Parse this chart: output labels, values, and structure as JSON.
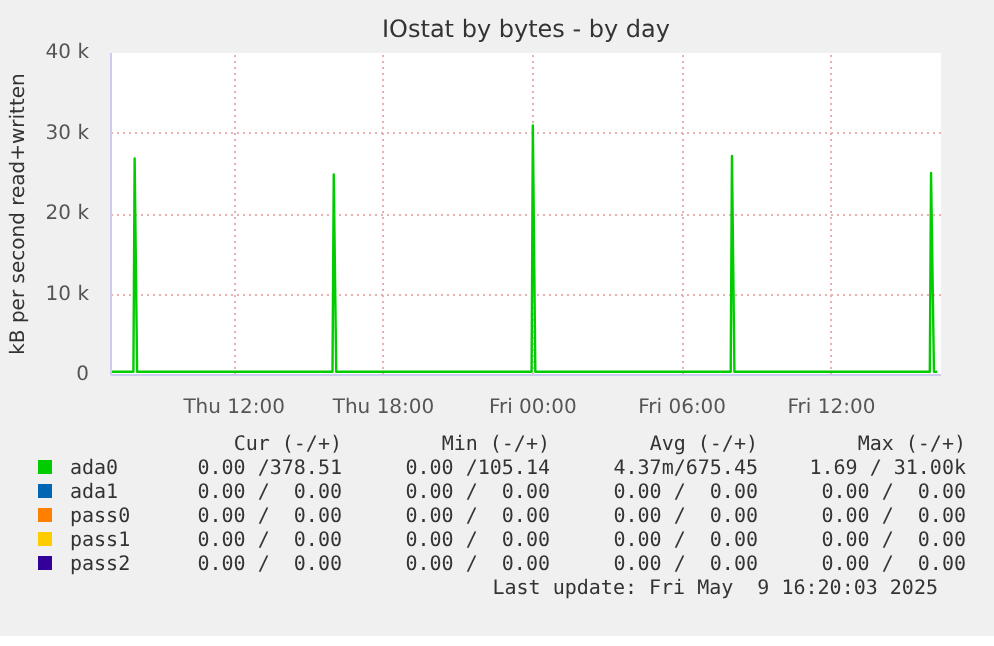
{
  "chart_data": {
    "type": "line",
    "title": "IOstat by bytes - by day",
    "ylabel": "kB per second read+written",
    "xlim": [
      "2025-05-08T07:03",
      "2025-05-09T16:24"
    ],
    "ylim": [
      0,
      40000
    ],
    "xticks": [
      {
        "value": "2025-05-08T12:00",
        "label": "Thu 12:00"
      },
      {
        "value": "2025-05-08T18:00",
        "label": "Thu 18:00"
      },
      {
        "value": "2025-05-09T00:00",
        "label": "Fri 00:00"
      },
      {
        "value": "2025-05-09T06:00",
        "label": "Fri 06:00"
      },
      {
        "value": "2025-05-09T12:00",
        "label": "Fri 12:00"
      }
    ],
    "yticks": [
      0,
      {
        "value": 10000,
        "label": "10 k"
      },
      {
        "value": 20000,
        "label": "20 k"
      },
      {
        "value": 30000,
        "label": "30 k"
      },
      {
        "value": 40000,
        "label": "40 k"
      }
    ],
    "grid": true,
    "legend": "bottom",
    "series": [
      {
        "name": "ada0",
        "color": "#00cc00",
        "x": [
          "2025-05-08T07:04",
          "2025-05-08T07:57",
          "2025-05-08T08:00",
          "2025-05-08T08:06",
          "2025-05-08T15:57",
          "2025-05-08T16:00",
          "2025-05-08T16:06",
          "2025-05-08T23:57",
          "2025-05-09T00:00",
          "2025-05-09T00:06",
          "2025-05-09T07:57",
          "2025-05-09T08:00",
          "2025-05-09T08:06",
          "2025-05-09T15:57",
          "2025-05-09T16:00",
          "2025-05-09T16:07",
          "2025-05-09T16:15"
        ],
        "values": [
          400,
          400,
          26900,
          400,
          400,
          24900,
          400,
          400,
          31000,
          400,
          400,
          27200,
          400,
          400,
          25100,
          400,
          400
        ]
      },
      {
        "name": "ada1",
        "color": "#0066b3"
      },
      {
        "name": "pass0",
        "color": "#ff8000"
      },
      {
        "name": "pass1",
        "color": "#ffcc00"
      },
      {
        "name": "pass2",
        "color": "#330099"
      }
    ],
    "annotations": [
      "Cur (-/+)",
      "Min (-/+)",
      "Avg (-/+)",
      "Max (-/+)",
      "0.00 /378.51",
      "0.00 /105.14",
      "4.37m/675.45",
      "1.69 / 31.00k",
      "0.00 /  0.00",
      "0.00 /  0.00",
      "0.00 /  0.00",
      "0.00 /  0.00",
      "0.00 /  0.00",
      "0.00 /  0.00",
      "0.00 /  0.00",
      "0.00 /  0.00",
      "0.00 /  0.00",
      "0.00 /  0.00",
      "0.00 /  0.00",
      "0.00 /  0.00",
      "0.00 /  0.00",
      "0.00 /  0.00",
      "0.00 /  0.00",
      "0.00 /  0.00",
      "Last update: Fri May  9 16:20:03 2025"
    ]
  }
}
